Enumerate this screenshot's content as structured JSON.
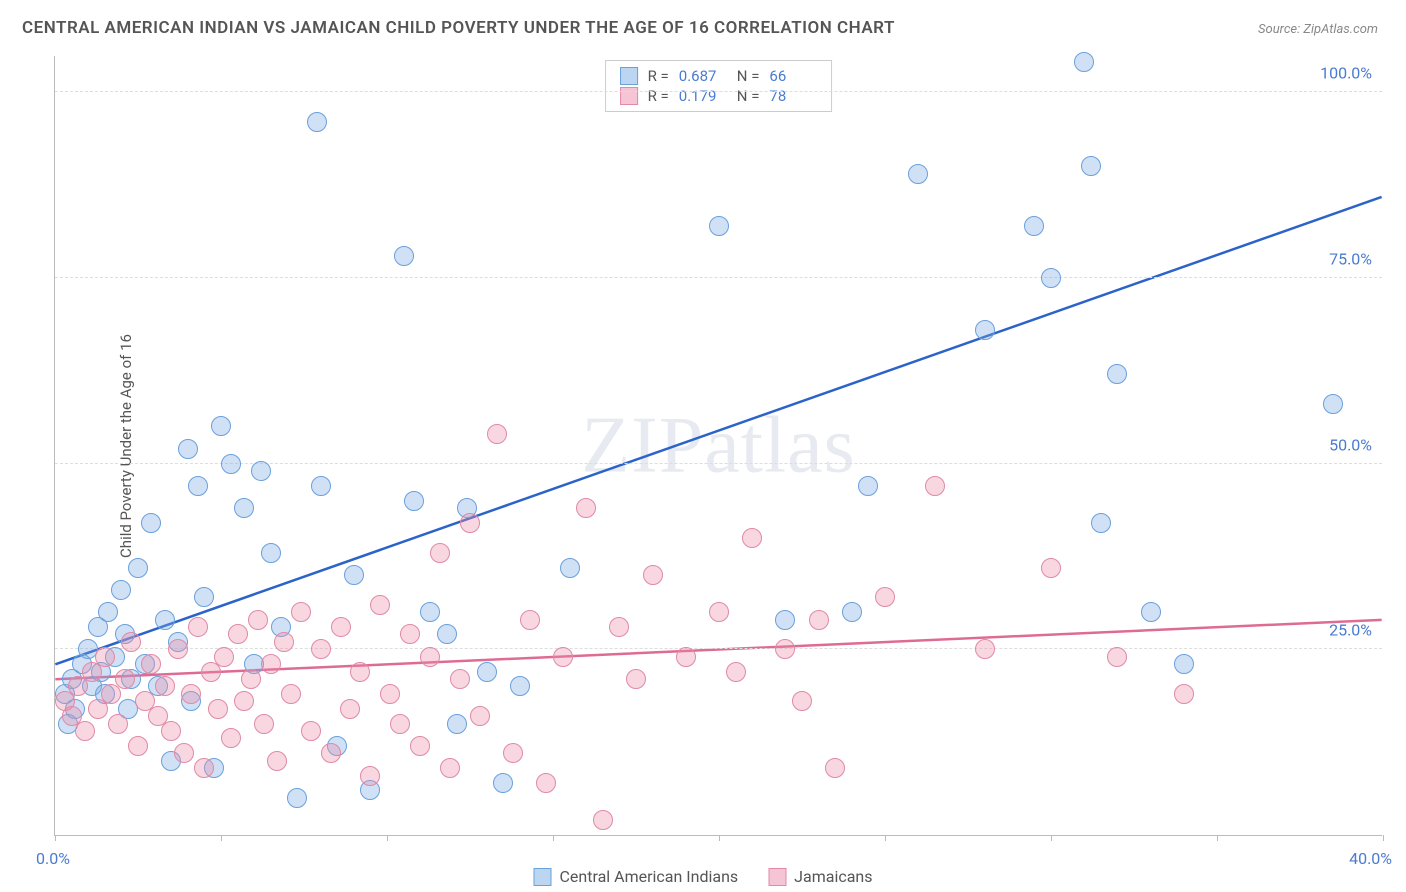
{
  "title": "CENTRAL AMERICAN INDIAN VS JAMAICAN CHILD POVERTY UNDER THE AGE OF 16 CORRELATION CHART",
  "source": "Source: ZipAtlas.com",
  "watermark": "ZIPatlas",
  "y_axis_label": "Child Poverty Under the Age of 16",
  "chart": {
    "type": "scatter",
    "xlim": [
      0,
      40
    ],
    "ylim": [
      0,
      105
    ],
    "x_ticks": [
      0,
      5,
      10,
      15,
      20,
      25,
      30,
      35,
      40
    ],
    "x_tick_labels": {
      "0": "0.0%",
      "40": "40.0%"
    },
    "y_ticks": [
      25,
      50,
      75,
      100
    ],
    "y_tick_labels": [
      "25.0%",
      "50.0%",
      "75.0%",
      "100.0%"
    ],
    "grid_color": "#dddddd",
    "axis_color": "#bbbbbb",
    "tick_label_color": "#4a7bd0",
    "background_color": "#ffffff",
    "point_radius": 10,
    "point_stroke_width": 1.5,
    "series": [
      {
        "name": "Central American Indians",
        "fill_color": "rgba(120,170,230,0.35)",
        "stroke_color": "#6aa0dc",
        "legend_swatch_fill": "#bcd6f2",
        "legend_swatch_border": "#6aa0dc",
        "R": "0.687",
        "N": "66",
        "trend": {
          "x1": 0,
          "y1": 23,
          "x2": 40,
          "y2": 86,
          "color": "#2c63c9",
          "width": 2.5
        },
        "points": [
          [
            0.3,
            19
          ],
          [
            0.5,
            21
          ],
          [
            0.6,
            17
          ],
          [
            0.8,
            23
          ],
          [
            1.0,
            25
          ],
          [
            1.1,
            20
          ],
          [
            1.3,
            28
          ],
          [
            1.4,
            22
          ],
          [
            1.6,
            30
          ],
          [
            1.8,
            24
          ],
          [
            2.0,
            33
          ],
          [
            2.1,
            27
          ],
          [
            2.3,
            21
          ],
          [
            2.5,
            36
          ],
          [
            2.7,
            23
          ],
          [
            2.9,
            42
          ],
          [
            3.1,
            20
          ],
          [
            3.3,
            29
          ],
          [
            3.5,
            10
          ],
          [
            3.7,
            26
          ],
          [
            4.0,
            52
          ],
          [
            4.1,
            18
          ],
          [
            4.3,
            47
          ],
          [
            4.5,
            32
          ],
          [
            4.8,
            9
          ],
          [
            5.0,
            55
          ],
          [
            5.3,
            50
          ],
          [
            5.7,
            44
          ],
          [
            6.0,
            23
          ],
          [
            6.2,
            49
          ],
          [
            6.5,
            38
          ],
          [
            6.8,
            28
          ],
          [
            7.3,
            5
          ],
          [
            7.9,
            96
          ],
          [
            8.0,
            47
          ],
          [
            8.5,
            12
          ],
          [
            9.0,
            35
          ],
          [
            9.5,
            6
          ],
          [
            10.5,
            78
          ],
          [
            10.8,
            45
          ],
          [
            11.3,
            30
          ],
          [
            11.8,
            27
          ],
          [
            12.1,
            15
          ],
          [
            12.4,
            44
          ],
          [
            13.0,
            22
          ],
          [
            13.5,
            7
          ],
          [
            14.0,
            20
          ],
          [
            15.5,
            36
          ],
          [
            20.0,
            82
          ],
          [
            22.0,
            29
          ],
          [
            24.0,
            30
          ],
          [
            24.5,
            47
          ],
          [
            26.0,
            89
          ],
          [
            28.0,
            68
          ],
          [
            29.5,
            82
          ],
          [
            30.0,
            75
          ],
          [
            31.0,
            104
          ],
          [
            31.2,
            90
          ],
          [
            31.5,
            42
          ],
          [
            32.0,
            62
          ],
          [
            33.0,
            30
          ],
          [
            34.0,
            23
          ],
          [
            38.5,
            58
          ],
          [
            1.5,
            19
          ],
          [
            2.2,
            17
          ],
          [
            0.4,
            15
          ]
        ]
      },
      {
        "name": "Jamaicans",
        "fill_color": "rgba(235,140,170,0.35)",
        "stroke_color": "#e089a8",
        "legend_swatch_fill": "#f5c5d5",
        "legend_swatch_border": "#e089a8",
        "R": "0.179",
        "N": "78",
        "trend": {
          "x1": 0,
          "y1": 21,
          "x2": 40,
          "y2": 29,
          "color": "#de6b93",
          "width": 2.5
        },
        "points": [
          [
            0.3,
            18
          ],
          [
            0.5,
            16
          ],
          [
            0.7,
            20
          ],
          [
            0.9,
            14
          ],
          [
            1.1,
            22
          ],
          [
            1.3,
            17
          ],
          [
            1.5,
            24
          ],
          [
            1.7,
            19
          ],
          [
            1.9,
            15
          ],
          [
            2.1,
            21
          ],
          [
            2.3,
            26
          ],
          [
            2.5,
            12
          ],
          [
            2.7,
            18
          ],
          [
            2.9,
            23
          ],
          [
            3.1,
            16
          ],
          [
            3.3,
            20
          ],
          [
            3.5,
            14
          ],
          [
            3.7,
            25
          ],
          [
            3.9,
            11
          ],
          [
            4.1,
            19
          ],
          [
            4.3,
            28
          ],
          [
            4.5,
            9
          ],
          [
            4.7,
            22
          ],
          [
            4.9,
            17
          ],
          [
            5.1,
            24
          ],
          [
            5.3,
            13
          ],
          [
            5.5,
            27
          ],
          [
            5.7,
            18
          ],
          [
            5.9,
            21
          ],
          [
            6.1,
            29
          ],
          [
            6.3,
            15
          ],
          [
            6.5,
            23
          ],
          [
            6.7,
            10
          ],
          [
            6.9,
            26
          ],
          [
            7.1,
            19
          ],
          [
            7.4,
            30
          ],
          [
            7.7,
            14
          ],
          [
            8.0,
            25
          ],
          [
            8.3,
            11
          ],
          [
            8.6,
            28
          ],
          [
            8.9,
            17
          ],
          [
            9.2,
            22
          ],
          [
            9.5,
            8
          ],
          [
            9.8,
            31
          ],
          [
            10.1,
            19
          ],
          [
            10.4,
            15
          ],
          [
            10.7,
            27
          ],
          [
            11.0,
            12
          ],
          [
            11.3,
            24
          ],
          [
            11.6,
            38
          ],
          [
            11.9,
            9
          ],
          [
            12.2,
            21
          ],
          [
            12.5,
            42
          ],
          [
            12.8,
            16
          ],
          [
            13.3,
            54
          ],
          [
            13.8,
            11
          ],
          [
            14.3,
            29
          ],
          [
            14.8,
            7
          ],
          [
            15.3,
            24
          ],
          [
            16.0,
            44
          ],
          [
            16.5,
            2
          ],
          [
            17.0,
            28
          ],
          [
            17.5,
            21
          ],
          [
            18.0,
            35
          ],
          [
            19.0,
            24
          ],
          [
            20.0,
            30
          ],
          [
            20.5,
            22
          ],
          [
            21.0,
            40
          ],
          [
            22.0,
            25
          ],
          [
            22.5,
            18
          ],
          [
            23.0,
            29
          ],
          [
            23.5,
            9
          ],
          [
            25.0,
            32
          ],
          [
            26.5,
            47
          ],
          [
            28.0,
            25
          ],
          [
            30.0,
            36
          ],
          [
            32.0,
            24
          ],
          [
            34.0,
            19
          ]
        ]
      }
    ]
  },
  "legend_top": {
    "r_label": "R =",
    "n_label": "N ="
  },
  "legend_bottom": {
    "items": [
      "Central American Indians",
      "Jamaicans"
    ]
  }
}
